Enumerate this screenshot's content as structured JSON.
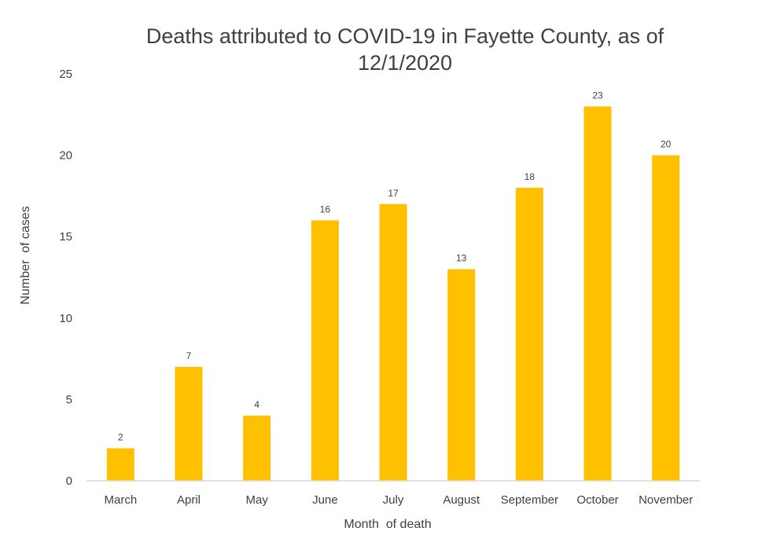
{
  "chart_data": {
    "type": "bar",
    "title": "Deaths attributed to COVID-19 in Fayette County, as of 12/1/2020",
    "title_lines": [
      "Deaths attributed to COVID-19 in Fayette County, as of",
      "12/1/2020"
    ],
    "xlabel": "Month  of death",
    "ylabel": "Number  of cases",
    "categories": [
      "March",
      "April",
      "May",
      "June",
      "July",
      "August",
      "September",
      "October",
      "November"
    ],
    "values": [
      2,
      7,
      4,
      16,
      17,
      13,
      18,
      23,
      20
    ],
    "ylim": [
      0,
      25
    ],
    "yticks": [
      0,
      5,
      10,
      15,
      20,
      25
    ],
    "grid": false,
    "legend": "none",
    "data_labels": true,
    "colors": {
      "bar": "#FFC000",
      "text": "#404040",
      "axis": "#D9D9D9"
    }
  }
}
